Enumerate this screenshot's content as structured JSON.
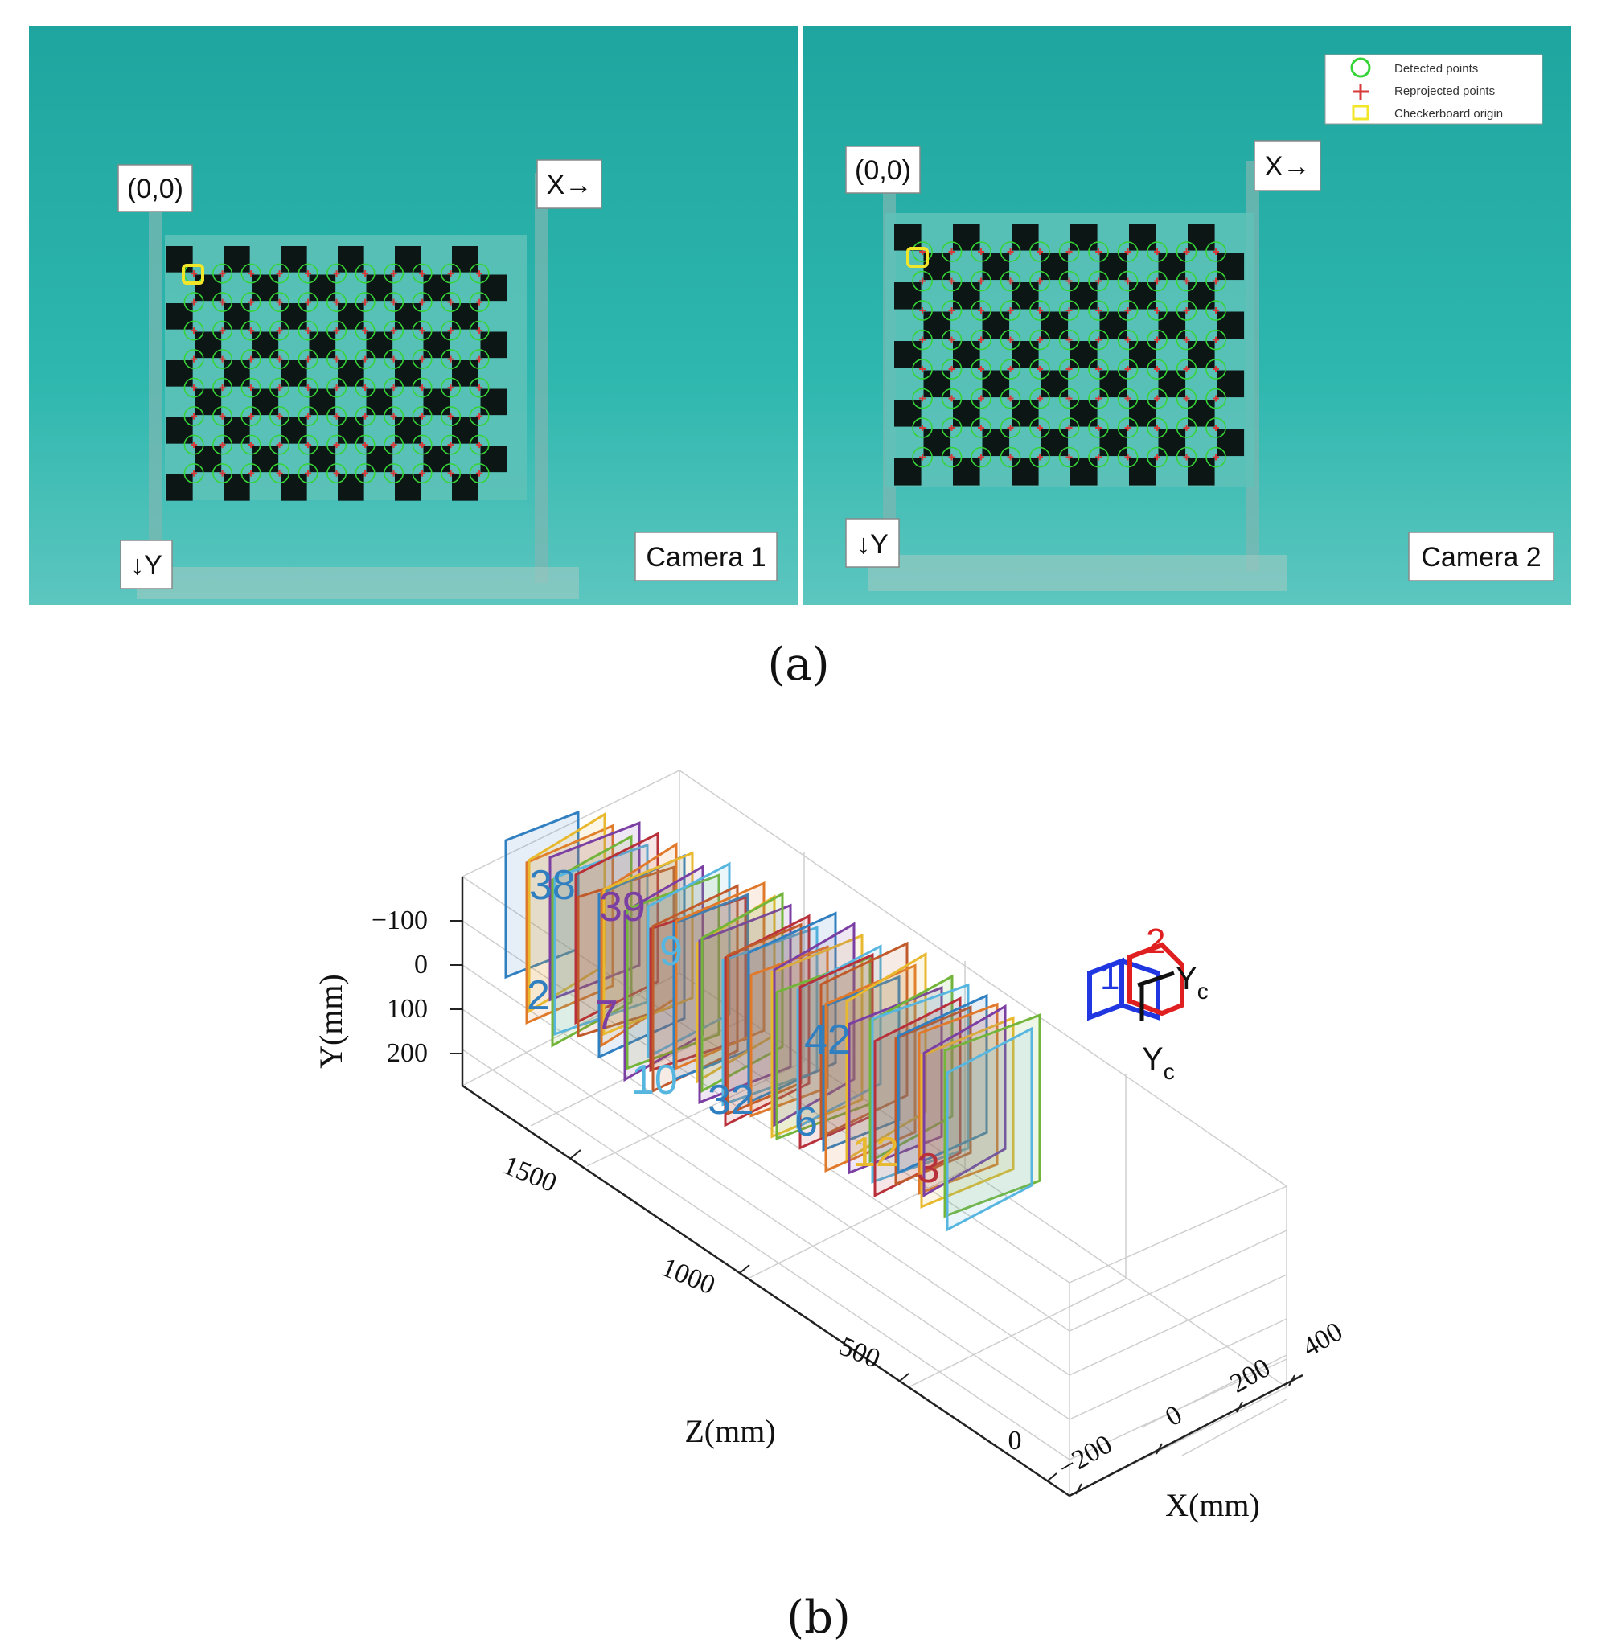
{
  "panel_a": {
    "caption": "(a)",
    "legend": {
      "detected": "Detected points",
      "reprojected": "Reprojected points",
      "origin": "Checkerboard origin"
    },
    "cameras": [
      {
        "origin_label": "(0,0)",
        "x_label": "X→",
        "y_label": "↓Y",
        "camera_label": "Camera 1"
      },
      {
        "origin_label": "(0,0)",
        "x_label": "X→",
        "y_label": "↓Y",
        "camera_label": "Camera 2"
      }
    ],
    "colors": {
      "water": "#2fb5ad",
      "detected": "#37d437",
      "reprojected": "#d63a3a",
      "origin": "#f2e629",
      "square": "#0c1614"
    }
  },
  "panel_b": {
    "caption": "(b)",
    "y_axis": {
      "label": "Y(mm)",
      "ticks": [
        "−100",
        "0",
        "100",
        "200"
      ]
    },
    "z_axis": {
      "label": "Z(mm)",
      "ticks": [
        "1500",
        "1000",
        "500",
        "0"
      ]
    },
    "x_axis": {
      "label": "X(mm)",
      "ticks": [
        "−200",
        "0",
        "200",
        "400"
      ]
    },
    "board_numbers": [
      "38",
      "2",
      "42",
      "10",
      "32",
      "6",
      "3",
      "12",
      "7",
      "9",
      "39"
    ],
    "camera_labels": {
      "cam1": "1",
      "cam2": "2",
      "axis": "Y",
      "subscript": "c"
    },
    "colors": [
      "#2f7fc1",
      "#e0792a",
      "#e8b92e",
      "#7b3ea3",
      "#73b53a",
      "#57b6e0",
      "#b8303a",
      "#c05a2a"
    ]
  }
}
